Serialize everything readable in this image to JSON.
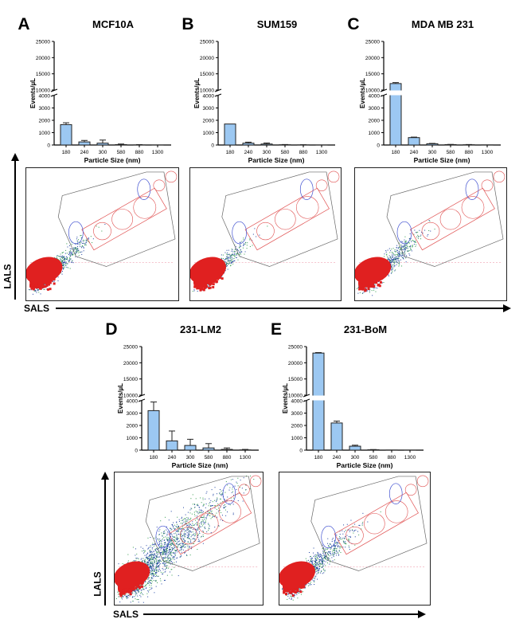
{
  "axis_labels": {
    "lals": "LALS",
    "sals": "SALS"
  },
  "chart_data": [
    {
      "type": "bar",
      "panel": "A",
      "title": "MCF10A",
      "categories": [
        "180",
        "240",
        "300",
        "580",
        "880",
        "1300"
      ],
      "values": [
        1650,
        250,
        150,
        30,
        10,
        5
      ],
      "errors": [
        150,
        120,
        250,
        50,
        20,
        0
      ],
      "xlabel": "Particle Size (nm)",
      "ylabel": "Events/µL",
      "ylim": [
        0,
        25000
      ],
      "axis_break": [
        4000,
        10000
      ],
      "yticks_lower": [
        "0",
        "1000",
        "2000",
        "3000",
        "4000"
      ],
      "yticks_upper": [
        "10000",
        "15000",
        "20000",
        "25000"
      ]
    },
    {
      "type": "bar",
      "panel": "B",
      "title": "SUM159",
      "categories": [
        "180",
        "240",
        "300",
        "580",
        "880",
        "1300"
      ],
      "values": [
        1700,
        150,
        80,
        20,
        10,
        5
      ],
      "errors": [
        0,
        80,
        80,
        20,
        10,
        0
      ],
      "xlabel": "Particle Size (nm)",
      "ylabel": "Events/µL",
      "ylim": [
        0,
        25000
      ],
      "axis_break": [
        4000,
        10000
      ],
      "yticks_lower": [
        "0",
        "1000",
        "2000",
        "3000",
        "4000"
      ],
      "yticks_upper": [
        "10000",
        "15000",
        "20000",
        "25000"
      ]
    },
    {
      "type": "bar",
      "panel": "C",
      "title": "MDA MB 231",
      "categories": [
        "180",
        "240",
        "300",
        "580",
        "880",
        "1300"
      ],
      "values": [
        12000,
        600,
        100,
        30,
        20,
        10
      ],
      "errors": [
        300,
        40,
        30,
        20,
        20,
        0
      ],
      "xlabel": "Particle Size (nm)",
      "ylabel": "Events/µL",
      "ylim": [
        0,
        25000
      ],
      "axis_break": [
        4000,
        10000
      ],
      "yticks_lower": [
        "0",
        "1000",
        "2000",
        "3000",
        "4000"
      ],
      "yticks_upper": [
        "10000",
        "15000",
        "20000",
        "25000"
      ]
    },
    {
      "type": "bar",
      "panel": "D",
      "title": "231-LM2",
      "categories": [
        "180",
        "240",
        "300",
        "580",
        "880",
        "1300"
      ],
      "values": [
        3200,
        750,
        380,
        180,
        60,
        20
      ],
      "errors": [
        700,
        800,
        500,
        350,
        120,
        40
      ],
      "xlabel": "Particle Size (nm)",
      "ylabel": "Events/µL",
      "ylim": [
        0,
        25000
      ],
      "axis_break": [
        4000,
        10000
      ],
      "yticks_lower": [
        "0",
        "1000",
        "2000",
        "3000",
        "4000"
      ],
      "yticks_upper": [
        "10000",
        "15000",
        "20000",
        "25000"
      ]
    },
    {
      "type": "bar",
      "panel": "E",
      "title": "231-BoM",
      "categories": [
        "180",
        "240",
        "300",
        "580",
        "880",
        "1300"
      ],
      "values": [
        23000,
        2200,
        320,
        30,
        10,
        5
      ],
      "errors": [
        150,
        150,
        80,
        20,
        0,
        0
      ],
      "xlabel": "Particle Size (nm)",
      "ylabel": "Events/µL",
      "ylim": [
        0,
        25000
      ],
      "axis_break": [
        4000,
        10000
      ],
      "yticks_lower": [
        "0",
        "1000",
        "2000",
        "3000",
        "4000"
      ],
      "yticks_upper": [
        "10000",
        "15000",
        "20000",
        "25000"
      ]
    }
  ],
  "colors": {
    "bar": "#9cc8f2",
    "red": "#e02020",
    "blue": "#1a3fa0",
    "green": "#2f9a4a",
    "gate_gray": "#666666",
    "gate_red": "#e05050",
    "gate_blue": "#4050d0"
  }
}
